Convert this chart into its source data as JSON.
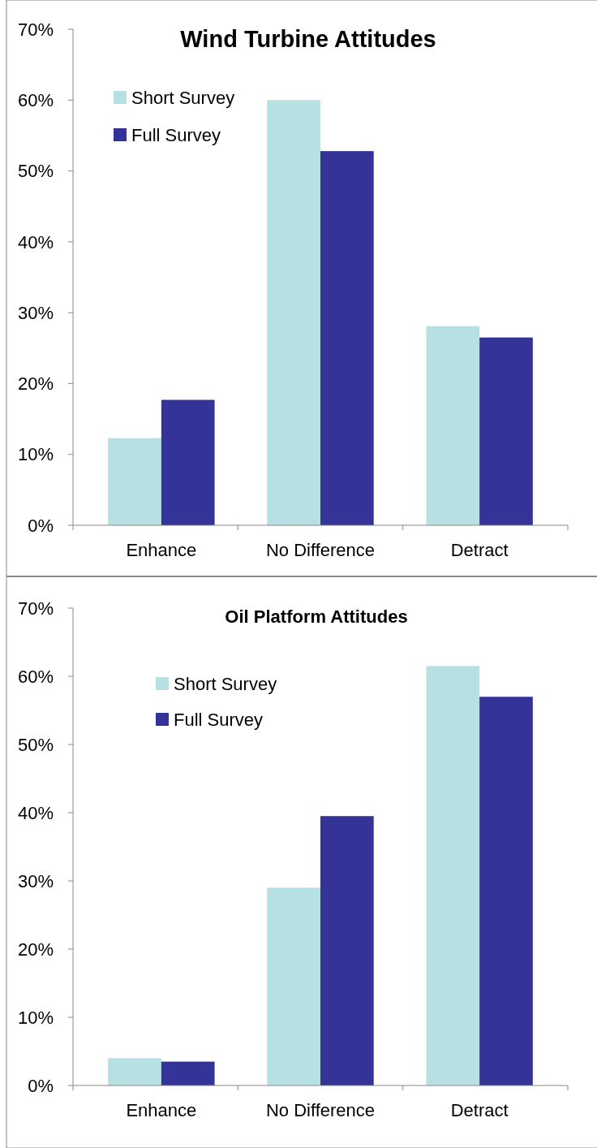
{
  "chart_data": [
    {
      "type": "bar",
      "title": "Wind Turbine Attitudes",
      "categories": [
        "Enhance",
        "No Difference",
        "Detract"
      ],
      "series": [
        {
          "name": "Short Survey",
          "color": "#b7e0e2",
          "values": [
            12.3,
            60,
            28.1
          ]
        },
        {
          "name": "Full Survey",
          "color": "#343398",
          "values": [
            17.7,
            52.8,
            26.5
          ]
        }
      ],
      "ylim": [
        0,
        70
      ],
      "yticks": [
        {
          "value": 0,
          "label": "0%"
        },
        {
          "value": 10,
          "label": "10%"
        },
        {
          "value": 20,
          "label": "20%"
        },
        {
          "value": 30,
          "label": "30%"
        },
        {
          "value": 40,
          "label": "40%"
        },
        {
          "value": 50,
          "label": "50%"
        },
        {
          "value": 60,
          "label": "60%"
        },
        {
          "value": 70,
          "label": "70%"
        }
      ],
      "legend": "top left",
      "grid": false
    },
    {
      "type": "bar",
      "title": "Oil Platform Attitudes",
      "categories": [
        "Enhance",
        "No Difference",
        "Detract"
      ],
      "series": [
        {
          "name": "Short Survey",
          "color": "#b7e0e2",
          "values": [
            4,
            29,
            61.5
          ]
        },
        {
          "name": "Full Survey",
          "color": "#343398",
          "values": [
            3.5,
            39.5,
            57
          ]
        }
      ],
      "ylim": [
        0,
        70
      ],
      "yticks": [
        {
          "value": 0,
          "label": "0%"
        },
        {
          "value": 10,
          "label": "10%"
        },
        {
          "value": 20,
          "label": "20%"
        },
        {
          "value": 30,
          "label": "30%"
        },
        {
          "value": 40,
          "label": "40%"
        },
        {
          "value": 50,
          "label": "50%"
        },
        {
          "value": 60,
          "label": "60%"
        },
        {
          "value": 70,
          "label": "70%"
        }
      ],
      "legend": "top left",
      "grid": false
    }
  ]
}
